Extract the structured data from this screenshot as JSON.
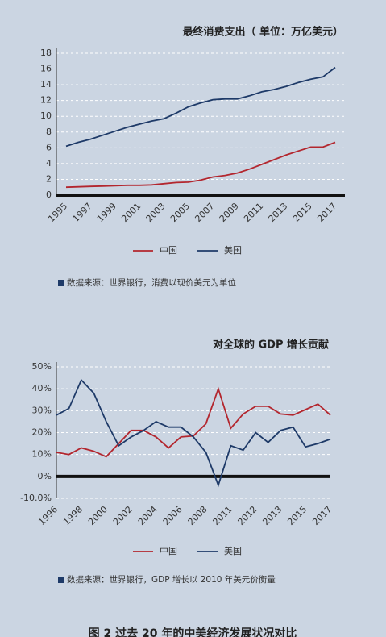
{
  "chart_data": [
    {
      "type": "line",
      "title": "最终消费支出（ 单位：万亿美元）",
      "x": [
        1995,
        1996,
        1997,
        1998,
        1999,
        2000,
        2001,
        2002,
        2003,
        2004,
        2005,
        2006,
        2007,
        2008,
        2009,
        2010,
        2011,
        2012,
        2013,
        2014,
        2015,
        2016,
        2017
      ],
      "xlim": [
        1995,
        2017
      ],
      "xticks": [
        1995,
        1997,
        1999,
        2001,
        2003,
        2005,
        2007,
        2009,
        2011,
        2013,
        2015,
        2017
      ],
      "ylim": [
        0,
        18
      ],
      "yticks": [
        0,
        2,
        4,
        6,
        8,
        10,
        12,
        14,
        16,
        18
      ],
      "grid": true,
      "series": [
        {
          "name": "中国",
          "color": "#b3262e",
          "values": [
            1.0,
            1.05,
            1.1,
            1.15,
            1.2,
            1.25,
            1.25,
            1.3,
            1.45,
            1.6,
            1.65,
            1.9,
            2.3,
            2.5,
            2.8,
            3.3,
            3.9,
            4.5,
            5.1,
            5.6,
            6.1,
            6.1,
            6.7
          ]
        },
        {
          "name": "美国",
          "color": "#1e3a68",
          "values": [
            6.2,
            6.7,
            7.1,
            7.6,
            8.1,
            8.6,
            9.0,
            9.4,
            9.7,
            10.4,
            11.2,
            11.7,
            12.1,
            12.2,
            12.2,
            12.6,
            13.1,
            13.4,
            13.8,
            14.3,
            14.7,
            15.0,
            16.2
          ]
        }
      ],
      "source": "数据来源：世界银行，消费以现价美元为单位"
    },
    {
      "type": "line",
      "title": "对全球的 GDP 增长贡献",
      "categories": [
        "1996",
        null,
        "1998",
        null,
        "2000",
        null,
        "2002",
        null,
        "2004",
        null,
        "2006",
        null,
        "2008",
        null,
        "2011",
        null,
        "2012",
        null,
        "2013",
        null,
        "2015",
        null,
        "2017"
      ],
      "ylim": [
        -10,
        50
      ],
      "yticks": [
        {
          "value": -10,
          "label": "-10.0%"
        },
        {
          "value": 0,
          "label": "0%"
        },
        {
          "value": 10,
          "label": "10%"
        },
        {
          "value": 20,
          "label": "20%"
        },
        {
          "value": 30,
          "label": "30%"
        },
        {
          "value": 40,
          "label": "40%"
        },
        {
          "value": 50,
          "label": "50%"
        }
      ],
      "grid": true,
      "series": [
        {
          "name": "中国",
          "color": "#b3262e",
          "values": [
            11,
            10,
            13,
            11.5,
            9,
            15,
            21,
            21,
            18,
            13,
            18,
            18.5,
            24,
            40,
            22,
            28.5,
            32,
            32,
            28.5,
            28,
            30.5,
            33,
            28
          ]
        },
        {
          "name": "美国",
          "color": "#1e3a68",
          "values": [
            28,
            31,
            44,
            38,
            25,
            14,
            18,
            21,
            25,
            22.5,
            22.5,
            18,
            11,
            -4,
            14,
            12,
            20,
            15.5,
            21,
            22.5,
            13.5,
            15,
            17
          ]
        }
      ],
      "source": "数据来源：世界银行，GDP 增长以 2010 年美元价衡量"
    }
  ],
  "caption": "图 2 过去 20 年的中美经济发展状况对比"
}
